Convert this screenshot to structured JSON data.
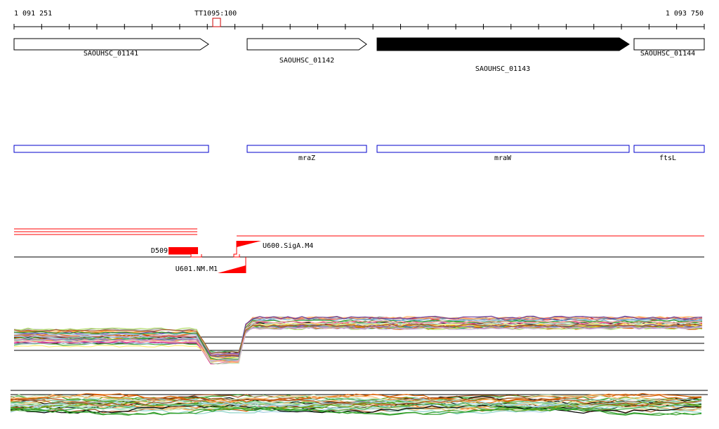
{
  "ruler": {
    "start_label": "1 091 251",
    "end_label": "1 093 750",
    "marker_label": "TT1095:100"
  },
  "genes": [
    {
      "locus": "SAOUHSC_01141",
      "strand": "+",
      "filled": false,
      "name": ""
    },
    {
      "locus": "SAOUHSC_01142",
      "strand": "+",
      "filled": false,
      "name": "mraZ"
    },
    {
      "locus": "SAOUHSC_01143",
      "strand": "+",
      "filled": true,
      "name": "mraW"
    },
    {
      "locus": "SAOUHSC_01144",
      "strand": "+",
      "filled": false,
      "name": "ftsL"
    }
  ],
  "features": [
    {
      "label": "D509",
      "color": "#ff0000"
    },
    {
      "label": "U600.SigA.M4",
      "color": "#ff0000"
    },
    {
      "label": "U601.NM.M1",
      "color": "#ff0000"
    }
  ],
  "colors": {
    "gene_outline": "#000000",
    "gene_fill": "#000000",
    "name_box": "#0000cc",
    "marker": "#cc0000",
    "feature": "#ff0000",
    "axis": "#000000"
  },
  "track_palette": [
    "#000000",
    "#e41a1c",
    "#377eb8",
    "#4daf4a",
    "#984ea3",
    "#ff7f00",
    "#a6cee3",
    "#b15928",
    "#e7298a",
    "#66a61e",
    "#e6ab02",
    "#1b9e77",
    "#d95f02",
    "#7570b3",
    "#999999",
    "#8dd3c7",
    "#fb8072",
    "#80b1d3",
    "#fdb462",
    "#b3de69",
    "#bc80bd",
    "#ccebc5",
    "#ffed6f",
    "#6a3d9a",
    "#33a02c",
    "#fb9a99",
    "#cab2d6",
    "#a65628",
    "#f781bf",
    "#17becf"
  ]
}
